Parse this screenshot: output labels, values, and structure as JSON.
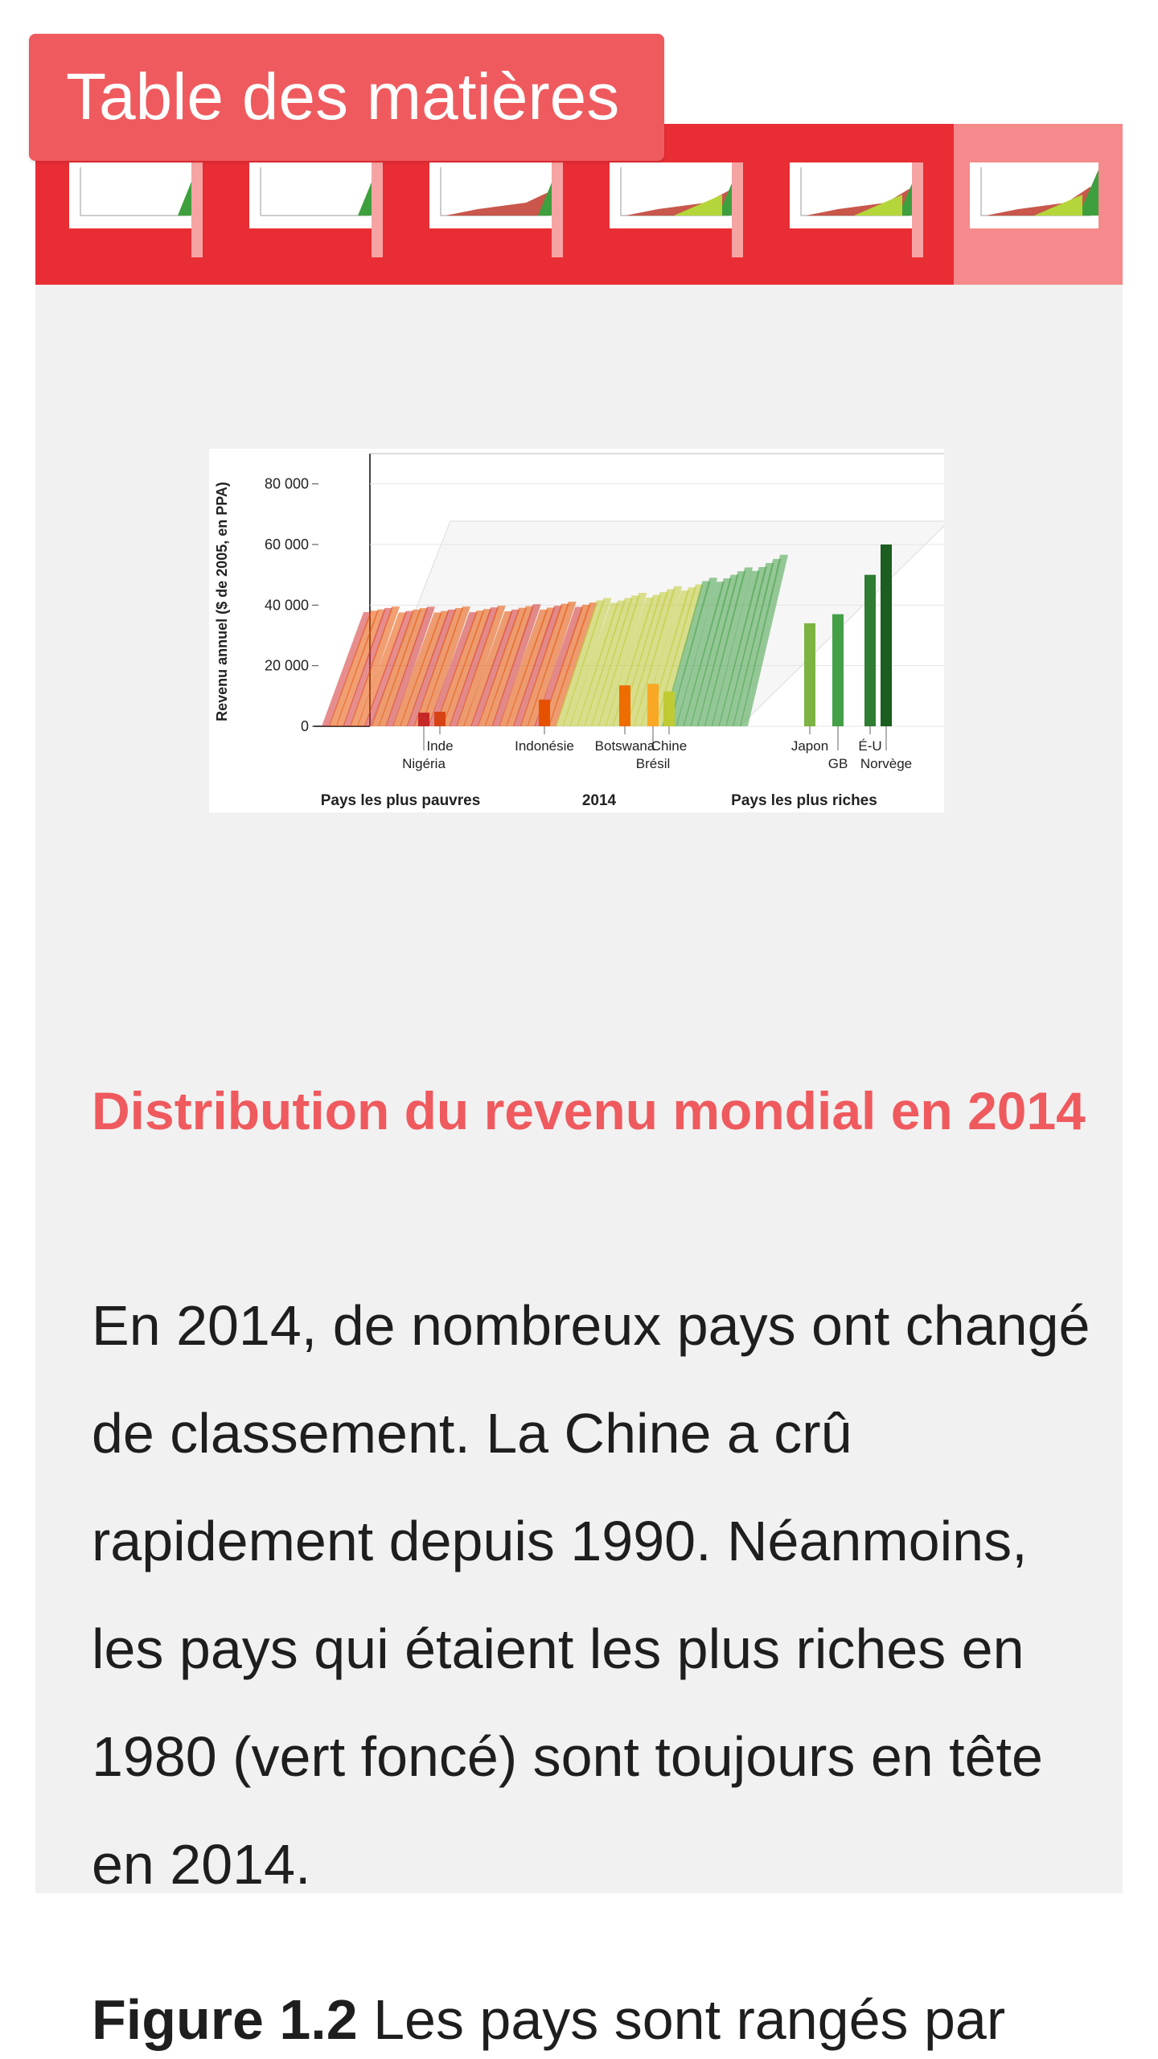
{
  "toc": {
    "label": "Table des matières"
  },
  "thumbnails": {
    "count": 6,
    "active_index": 5
  },
  "chart_data": {
    "type": "bar",
    "title": "",
    "ylabel": "Revenu annuel ($ de 2005, en PPA)",
    "yticks": [
      "0",
      "20 000",
      "40 000",
      "60 000",
      "80 000"
    ],
    "ylim": [
      0,
      90000
    ],
    "year_label": "2014",
    "poorest_label": "Pays les plus pauvres",
    "richest_label": "Pays les plus riches",
    "countries": [
      {
        "name": "Nigéria",
        "value": 4500
      },
      {
        "name": "Inde",
        "value": 4800
      },
      {
        "name": "Indonésie",
        "value": 8800
      },
      {
        "name": "Botswana",
        "value": 13500
      },
      {
        "name": "Brésil",
        "value": 14000
      },
      {
        "name": "Chine",
        "value": 11500
      },
      {
        "name": "Japon",
        "value": 34000
      },
      {
        "name": "GB",
        "value": 37000
      },
      {
        "name": "É-U",
        "value": 50000
      },
      {
        "name": "Norvège",
        "value": 60000
      }
    ]
  },
  "section": {
    "heading": "Distribution du revenu mondial en 2014",
    "body": "En 2014, de nombreux pays ont changé de classement. La Chine a crû rapidement depuis 1990. Néanmoins, les pays qui étaient les plus riches en 1980 (vert foncé) sont toujours en tête en 2014."
  },
  "caption": {
    "label": "Figure 1.2",
    "text": " Les pays sont rangés par"
  },
  "colors": {
    "accent": "#ef5a5e",
    "strip": "#e92d34",
    "panel": "#f1f1f1"
  }
}
